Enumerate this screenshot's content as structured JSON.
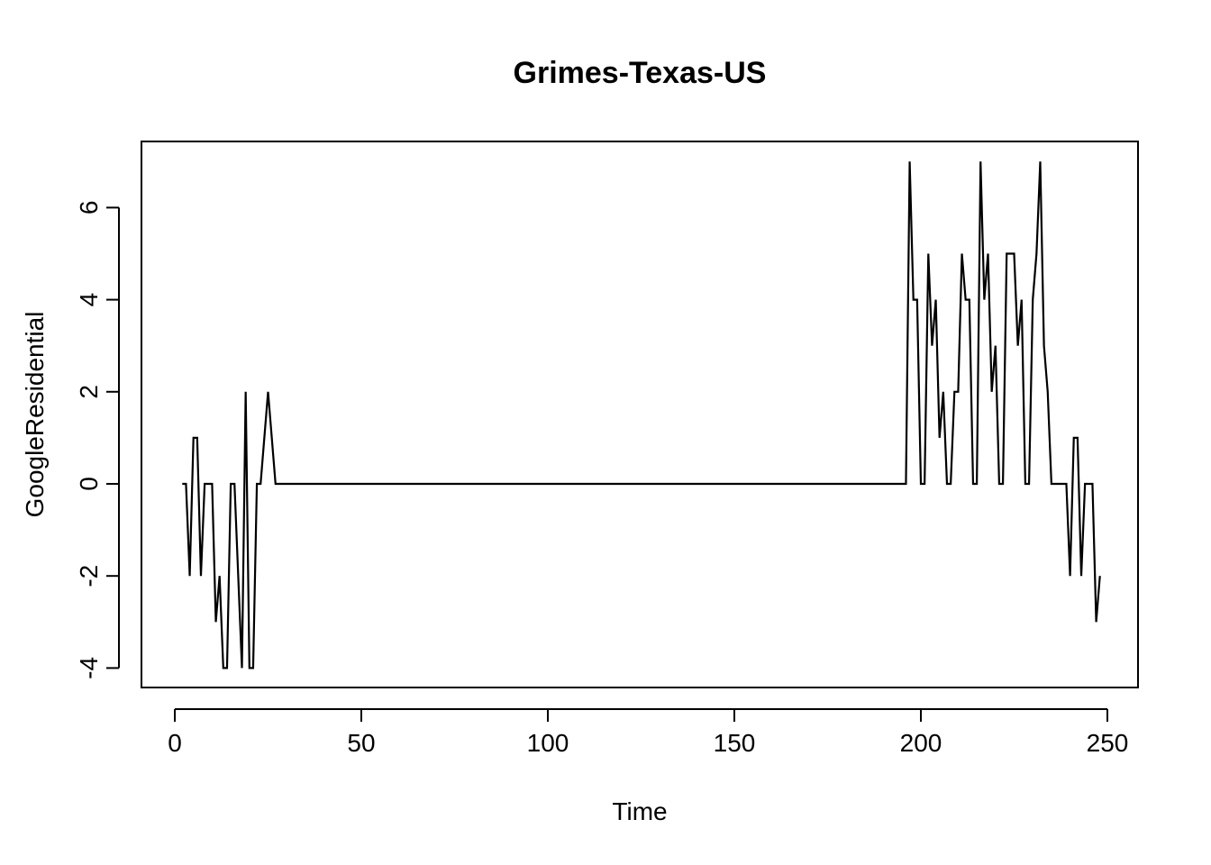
{
  "chart_data": {
    "type": "line",
    "title": "Grimes-Texas-US",
    "xlabel": "Time",
    "ylabel": "GoogleResidential",
    "xlim": [
      0,
      250
    ],
    "ylim": [
      -4,
      7
    ],
    "x_ticks": [
      0,
      50,
      100,
      150,
      200,
      250
    ],
    "y_ticks": [
      -4,
      -2,
      0,
      2,
      4,
      6
    ],
    "x_tick_labels": [
      "0",
      "50",
      "100",
      "150",
      "200",
      "250"
    ],
    "y_tick_labels": [
      "-4",
      "-2",
      "0",
      "2",
      "4",
      "6"
    ],
    "grid": false,
    "legend": "none",
    "line_color": "#000000",
    "series": [
      {
        "x": [
          2,
          3,
          4,
          5,
          6,
          7,
          8,
          9,
          10,
          11,
          12,
          13,
          14,
          15,
          16,
          17,
          18,
          19,
          20,
          21,
          22,
          23,
          24,
          25,
          26,
          27,
          196,
          197,
          198,
          199,
          200,
          201,
          202,
          203,
          204,
          205,
          206,
          207,
          208,
          209,
          210,
          211,
          212,
          213,
          214,
          215,
          216,
          217,
          218,
          219,
          220,
          221,
          222,
          223,
          224,
          225,
          226,
          227,
          228,
          229,
          230,
          231,
          232,
          233,
          234,
          235,
          236,
          237,
          238,
          239,
          240,
          241,
          242,
          243,
          244,
          245,
          246,
          247,
          248
        ],
        "y": [
          0,
          0,
          -2,
          1,
          1,
          -2,
          0,
          0,
          0,
          -3,
          -2,
          -4,
          -4,
          0,
          0,
          -2,
          -4,
          2,
          -4,
          -4,
          0,
          0,
          1,
          2,
          1,
          0,
          0,
          7,
          4,
          4,
          0,
          0,
          5,
          3,
          4,
          1,
          2,
          0,
          0,
          2,
          2,
          5,
          4,
          4,
          0,
          0,
          7,
          4,
          5,
          2,
          3,
          0,
          0,
          5,
          5,
          5,
          3,
          4,
          0,
          0,
          4,
          5,
          7,
          3,
          2,
          0,
          0,
          0,
          0,
          0,
          -2,
          1,
          1,
          -2,
          0,
          0,
          0,
          -3,
          -2
        ]
      }
    ]
  }
}
